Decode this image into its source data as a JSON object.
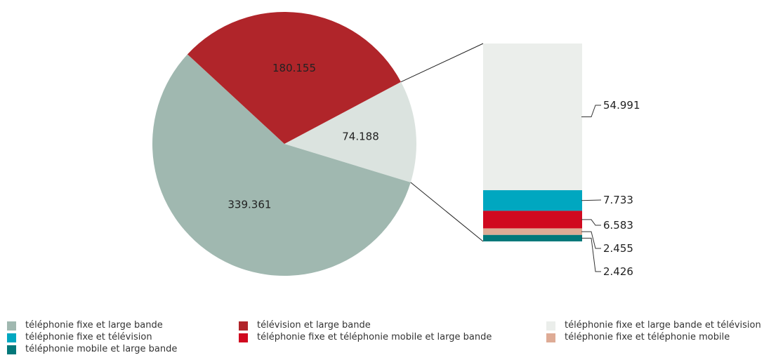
{
  "chart_data": {
    "type": "pie",
    "pie": {
      "slices": [
        {
          "label": "téléphonie fixe et large bande",
          "value": 339361,
          "display": "339.361",
          "color": "#a0b8b0"
        },
        {
          "label": "télévision et large bande",
          "value": 180155,
          "display": "180.155",
          "color": "#b0252a"
        },
        {
          "label": "téléphonie fixe et large bande et télévision",
          "value": 74188,
          "display": "74.188",
          "color": "#dbe3df"
        }
      ]
    },
    "breakdown": {
      "type": "bar",
      "stacked": true,
      "of_slice": "téléphonie fixe et large bande et télévision",
      "segments": [
        {
          "label": "téléphonie fixe et large bande et télévision",
          "value": 54991,
          "display": "54.991",
          "color": "#ebeeeb"
        },
        {
          "label": "téléphonie fixe et télévision",
          "value": 7733,
          "display": "7.733",
          "color": "#00a7c0"
        },
        {
          "label": "téléphonie fixe et téléphonie mobile et large bande",
          "value": 6583,
          "display": "6.583",
          "color": "#d0091f"
        },
        {
          "label": "téléphonie fixe et téléphonie mobile",
          "value": 2455,
          "display": "2.455",
          "color": "#deab95"
        },
        {
          "label": "téléphonie mobile et large bande",
          "value": 2426,
          "display": "2.426",
          "color": "#03787a"
        }
      ]
    },
    "legend": [
      {
        "label": "téléphonie fixe et large bande",
        "color": "#a0b8b0"
      },
      {
        "label": "télévision et large bande",
        "color": "#b0252a"
      },
      {
        "label": "téléphonie fixe et large bande et télévision",
        "color": "#ebeeeb"
      },
      {
        "label": "téléphonie fixe et télévision",
        "color": "#00a7c0"
      },
      {
        "label": "téléphonie fixe et téléphonie mobile et large bande",
        "color": "#d0091f"
      },
      {
        "label": "téléphonie fixe et téléphonie mobile",
        "color": "#deab95"
      },
      {
        "label": "téléphonie mobile et large bande",
        "color": "#03787a"
      }
    ]
  }
}
